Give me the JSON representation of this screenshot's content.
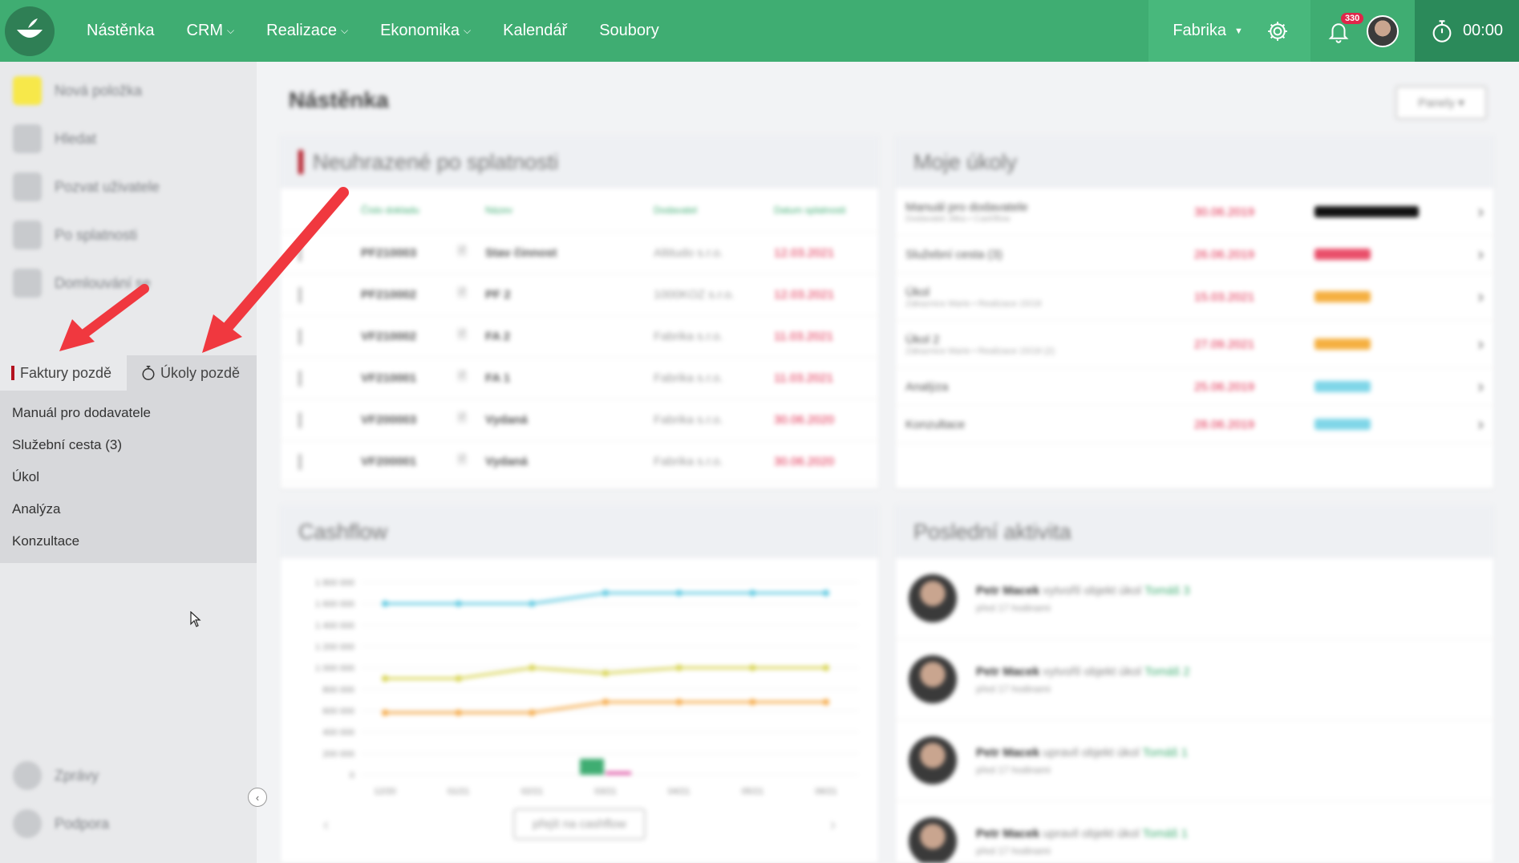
{
  "topbar": {
    "nav": [
      {
        "label": "Nástěnka",
        "has_menu": false
      },
      {
        "label": "CRM",
        "has_menu": true
      },
      {
        "label": "Realizace",
        "has_menu": true
      },
      {
        "label": "Ekonomika",
        "has_menu": true
      },
      {
        "label": "Kalendář",
        "has_menu": false
      },
      {
        "label": "Soubory",
        "has_menu": false
      }
    ],
    "company": "Fabrika",
    "notification_count": "330",
    "timer": "00:00",
    "colors": {
      "bar": "#3fad72",
      "company_bg": "#48b87c",
      "timer_bg": "#2b8a5a",
      "badge": "#e0264a"
    }
  },
  "sidebar": {
    "items": [
      {
        "label": "Nová položka",
        "icon": "plus-icon"
      },
      {
        "label": "Hledat",
        "icon": "search-icon"
      },
      {
        "label": "Pozvat uživatele",
        "icon": "user-add-icon"
      },
      {
        "label": "Po splatnosti",
        "icon": "invoice-icon"
      },
      {
        "label": "Domlouvání se",
        "icon": "chart-icon"
      }
    ],
    "tabs": [
      {
        "label": "Faktury pozdě",
        "icon": "red-marker-icon",
        "active": true
      },
      {
        "label": "Úkoly pozdě",
        "icon": "stopwatch-icon",
        "active": false
      }
    ],
    "task_list": [
      "Manuál pro dodavatele",
      "Služební cesta (3)",
      "Úkol",
      "Analýza",
      "Konzultace"
    ],
    "bottom": [
      {
        "label": "Zprávy",
        "icon": "chat-icon"
      },
      {
        "label": "Podpora",
        "icon": "help-icon"
      }
    ]
  },
  "main": {
    "title": "Nástěnka",
    "panels_button": "Panely",
    "unpaid": {
      "title": "Neuhrazené po splatnosti",
      "columns": [
        "Číslo dokladu",
        "Název",
        "Dodavatel",
        "Datum splatnosti"
      ],
      "rows": [
        {
          "number": "PF210003",
          "name": "Stav činnost",
          "supplier": "Altitudo s.r.o.",
          "date": "12.03.2021"
        },
        {
          "number": "PF210002",
          "name": "PF 2",
          "supplier": "1000KOZ s.r.o.",
          "date": "12.03.2021"
        },
        {
          "number": "VF210002",
          "name": "FA 2",
          "supplier": "Fabrika s.r.o.",
          "date": "11.03.2021"
        },
        {
          "number": "VF210001",
          "name": "FA 1",
          "supplier": "Fabrika s.r.o.",
          "date": "11.03.2021"
        },
        {
          "number": "VF200003",
          "name": "Vydaná",
          "supplier": "Fabrika s.r.o.",
          "date": "30.06.2020"
        },
        {
          "number": "VF200001",
          "name": "Vydaná",
          "supplier": "Fabrika s.r.o.",
          "date": "30.06.2020"
        }
      ]
    },
    "tasks": {
      "title": "Moje úkoly",
      "rows": [
        {
          "name": "Manuál pro dodavatele",
          "sub": "Dodavatel Jitka • Cashflow",
          "date": "30.06.2019",
          "priority_color": "#111111"
        },
        {
          "name": "Služební cesta (3)",
          "sub": "",
          "date": "26.06.2019",
          "priority_color": "#e94f6a"
        },
        {
          "name": "Úkol",
          "sub": "Zákaznice Marie • Realizace 15/18",
          "date": "15.03.2021",
          "priority_color": "#f5b041"
        },
        {
          "name": "Úkol 2",
          "sub": "Zákaznice Marie • Realizace 15/18 (2)",
          "date": "27.09.2021",
          "priority_color": "#f5b041"
        },
        {
          "name": "Analýza",
          "sub": "",
          "date": "25.06.2019",
          "priority_color": "#7fd6e8"
        },
        {
          "name": "Konzultace",
          "sub": "",
          "date": "28.06.2019",
          "priority_color": "#7fd6e8"
        }
      ]
    },
    "cashflow": {
      "title": "Cashflow",
      "button": "přejít na cashflow"
    },
    "activity": {
      "title": "Poslední aktivita",
      "items": [
        {
          "user": "Petr Macek",
          "action": "vytvořil objekt úkol",
          "target": "Tomáš 3",
          "time": "před 17 hodinami"
        },
        {
          "user": "Petr Macek",
          "action": "vytvořil objekt úkol",
          "target": "Tomáš 2",
          "time": "před 17 hodinami"
        },
        {
          "user": "Petr Macek",
          "action": "upravil objekt úkol",
          "target": "Tomáš 1",
          "time": "před 17 hodinami"
        },
        {
          "user": "Petr Macek",
          "action": "upravil objekt úkol",
          "target": "Tomáš 1",
          "time": "před 17 hodinami"
        }
      ]
    }
  },
  "chart_data": {
    "type": "line",
    "categories": [
      "12/20",
      "01/21",
      "02/21",
      "03/21",
      "04/21",
      "05/21",
      "06/21"
    ],
    "ylim": [
      0,
      1800000
    ],
    "yticks": [
      "1 800 000",
      "1 600 000",
      "1 400 000",
      "1 200 000",
      "1 000 000",
      "800 000",
      "600 000",
      "400 000",
      "200 000",
      "0"
    ],
    "series": [
      {
        "color": "#5bc8e0",
        "values": [
          1600000,
          1600000,
          1600000,
          1700000,
          1700000,
          1700000,
          1700000
        ]
      },
      {
        "color": "#d6d24a",
        "values": [
          900000,
          900000,
          1000000,
          950000,
          1000000,
          1000000,
          1000000
        ]
      },
      {
        "color": "#f5a742",
        "values": [
          580000,
          580000,
          580000,
          680000,
          680000,
          680000,
          680000
        ]
      }
    ],
    "bars": [
      {
        "category": "03/21",
        "color": "#3fad72",
        "value": 150000
      },
      {
        "category": "03/21",
        "color": "#e05aa8",
        "value": 30000
      }
    ]
  }
}
